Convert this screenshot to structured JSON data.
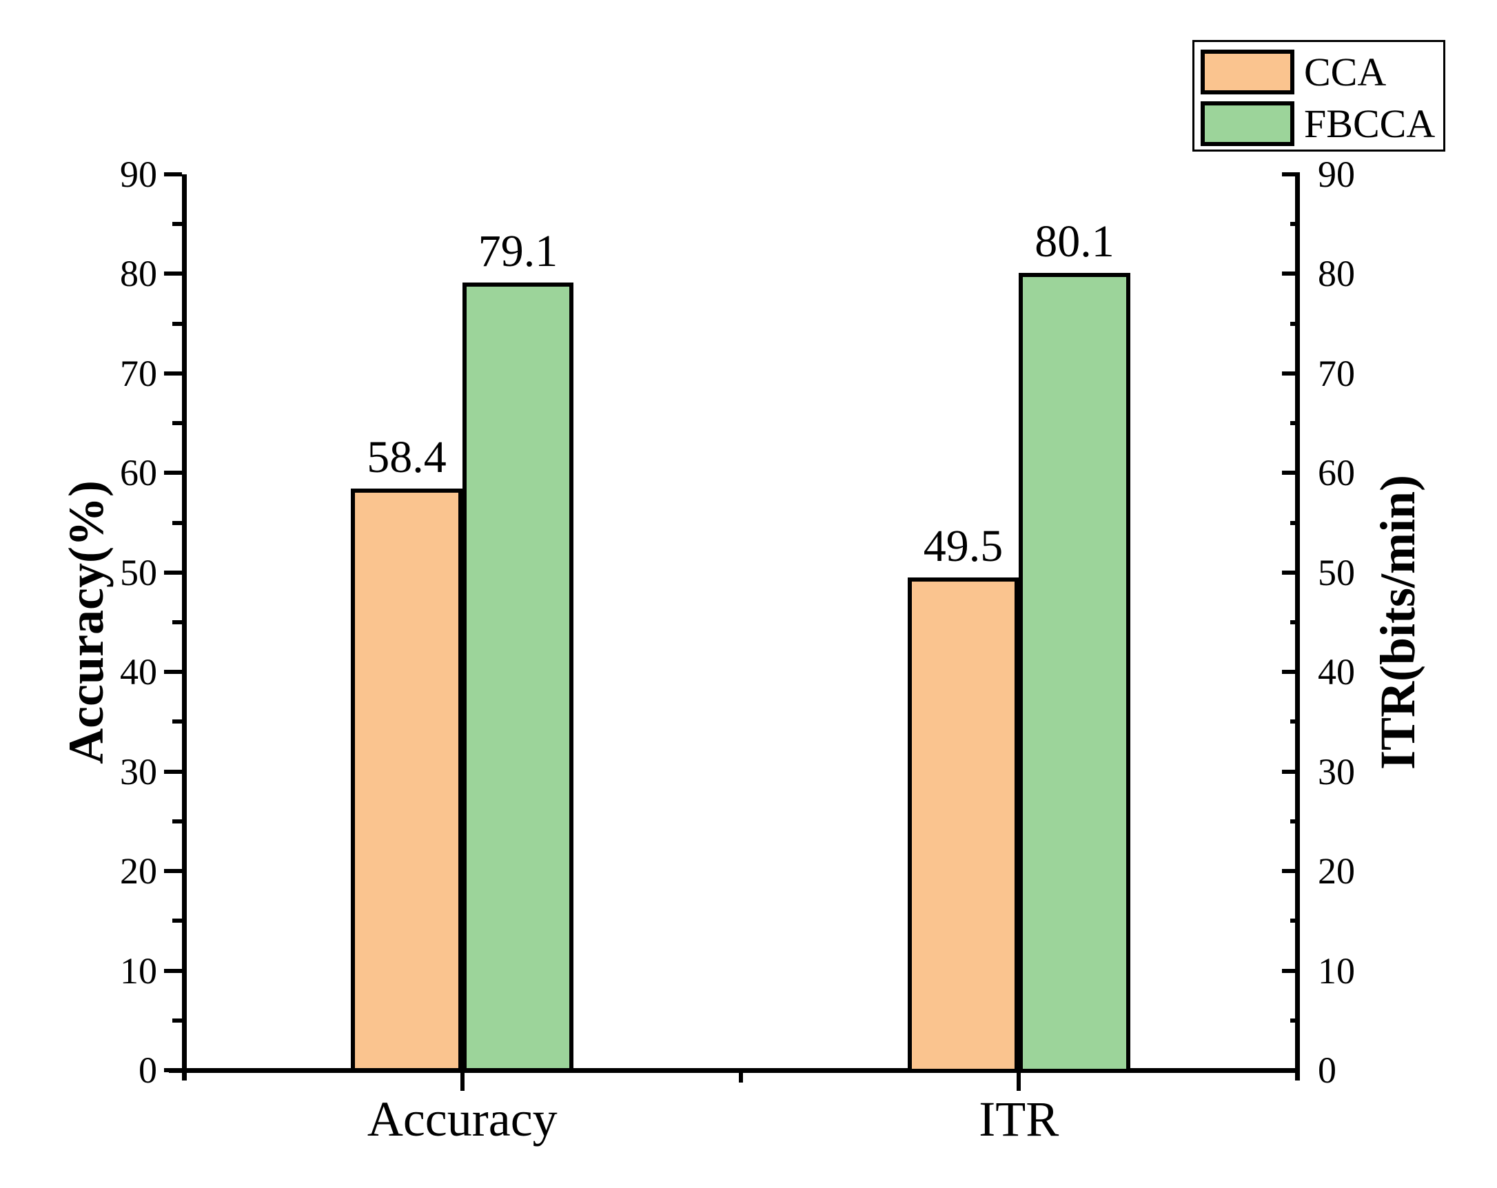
{
  "chart_data": {
    "type": "bar",
    "categories": [
      "Accuracy",
      "ITR"
    ],
    "series": [
      {
        "name": "CCA",
        "color": "#FAC48F",
        "values": [
          58.4,
          49.5
        ]
      },
      {
        "name": "FBCCA",
        "color": "#9CD49A",
        "values": [
          79.1,
          80.1
        ]
      }
    ],
    "bar_value_labels": [
      [
        "58.4",
        "49.5"
      ],
      [
        "79.1",
        "80.1"
      ]
    ],
    "left_axis": {
      "label": "Accuracy(%)",
      "min": 0,
      "max": 90,
      "major_tick_step": 10,
      "minor_tick_step": 5,
      "tick_labels": [
        "0",
        "10",
        "20",
        "30",
        "40",
        "50",
        "60",
        "70",
        "80",
        "90"
      ]
    },
    "right_axis": {
      "label": "ITR(bits/min)",
      "min": 0,
      "max": 90,
      "major_tick_step": 10,
      "minor_tick_step": 5,
      "tick_labels": [
        "0",
        "10",
        "20",
        "30",
        "40",
        "50",
        "60",
        "70",
        "80",
        "90"
      ]
    },
    "legend": {
      "position": "top-right",
      "items": [
        {
          "label": "CCA",
          "color": "#FAC48F"
        },
        {
          "label": "FBCCA",
          "color": "#9CD49A"
        }
      ]
    },
    "styles": {
      "background": "#FFFFFF",
      "axis_color": "#000000",
      "bar_border_color": "#000000",
      "text_color": "#000000",
      "grid": "off"
    }
  }
}
